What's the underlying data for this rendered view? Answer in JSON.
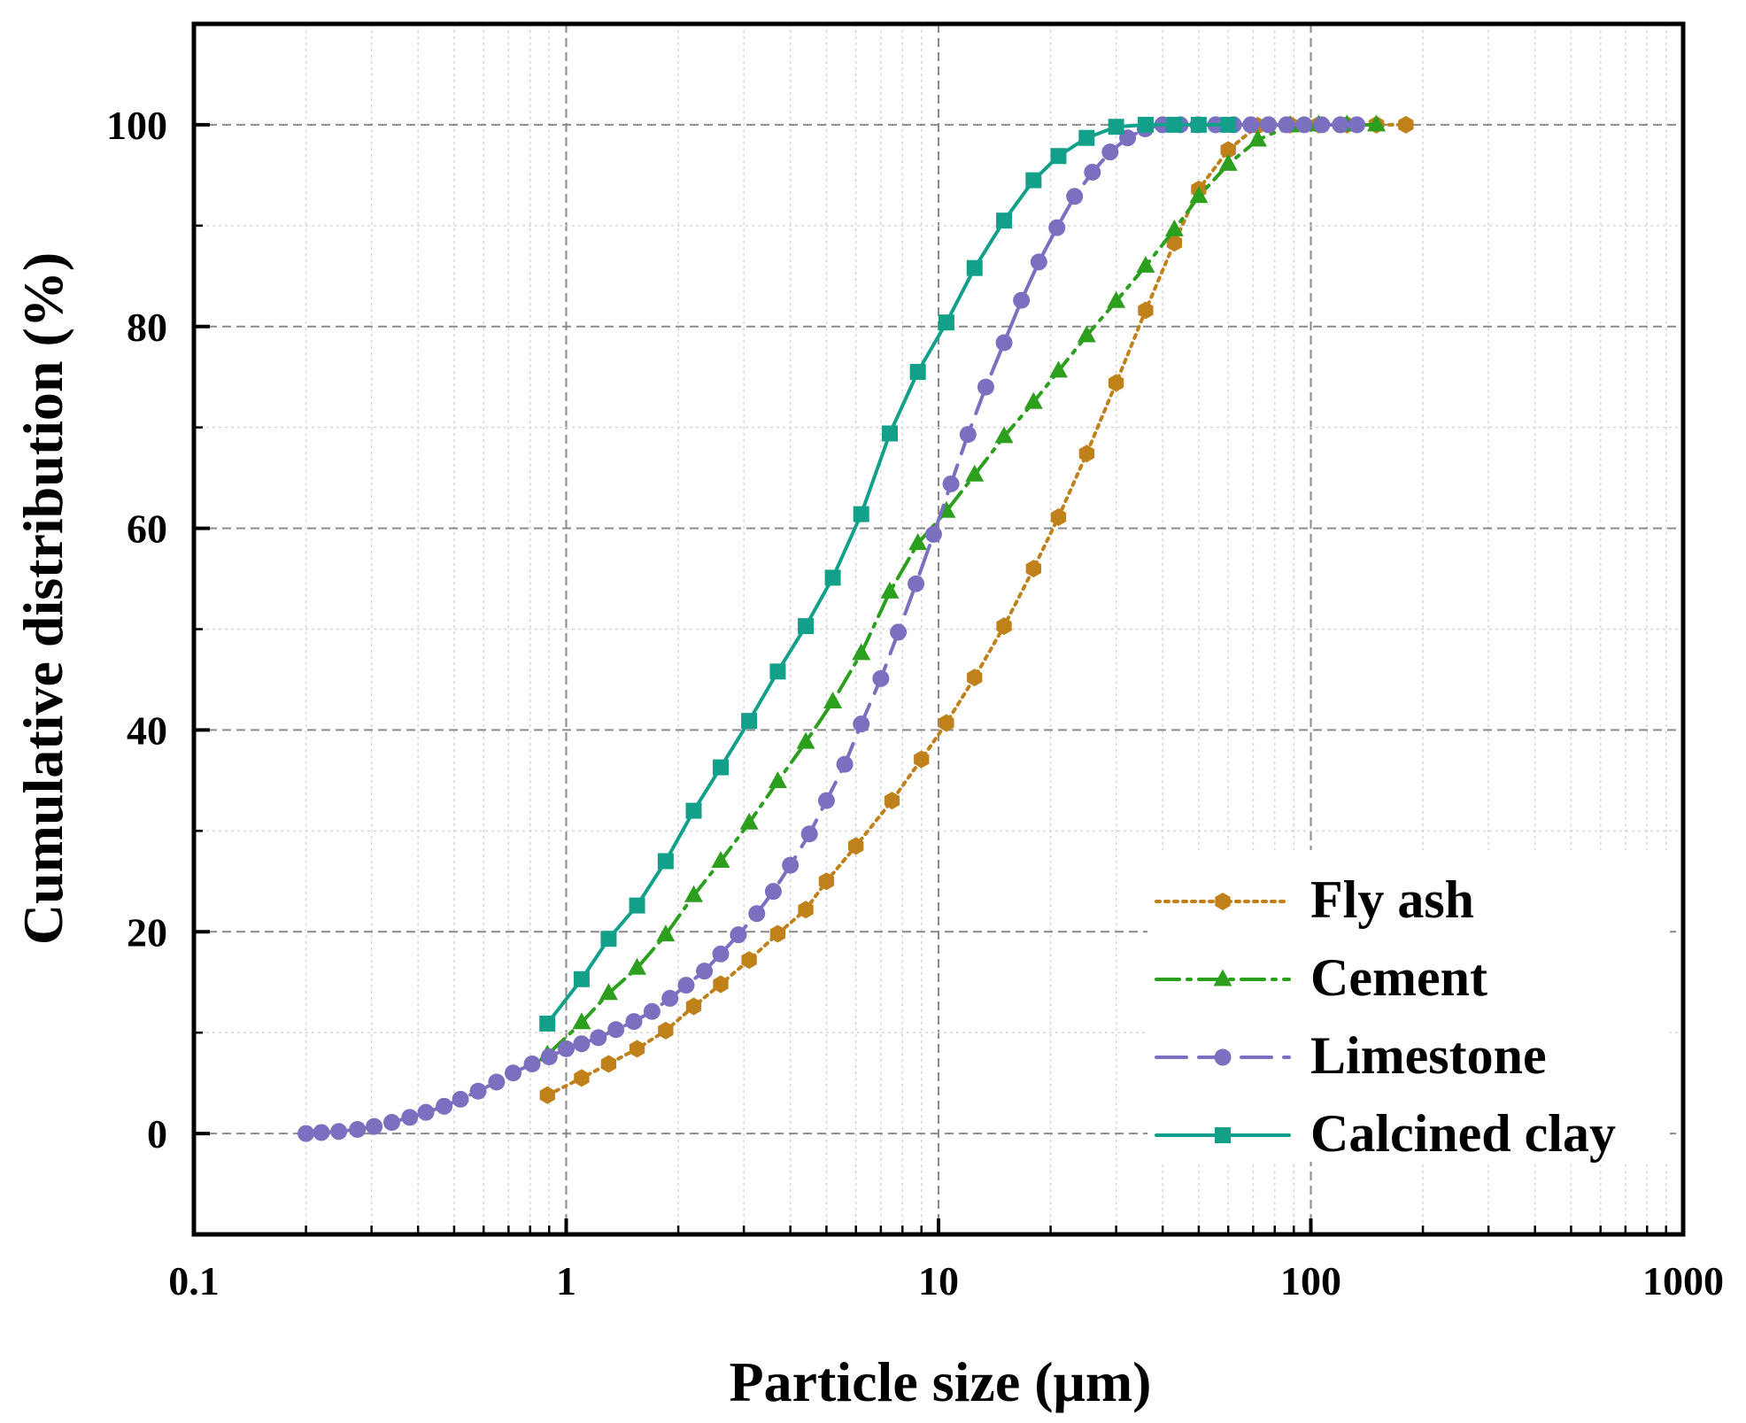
{
  "chart_data": {
    "type": "line",
    "title": "",
    "xlabel": "Particle size (μm)",
    "ylabel": "Cumulative distribution (%)",
    "xscale": "log",
    "xlim": [
      0.1,
      1000
    ],
    "ylim": [
      -10,
      110
    ],
    "xticks": [
      0.1,
      1,
      10,
      100,
      1000
    ],
    "xtick_labels": [
      "0.1",
      "1",
      "10",
      "100",
      "1000"
    ],
    "yticks": [
      0,
      20,
      40,
      60,
      80,
      100
    ],
    "ytick_labels": [
      "0",
      "20",
      "40",
      "60",
      "80",
      "100"
    ],
    "grid": true,
    "legend_position": "bottom-right",
    "series": [
      {
        "name": "Fly ash",
        "color": "#c0801a",
        "line_style": "dotted",
        "marker": "hexagon",
        "x": [
          0.89,
          1.1,
          1.3,
          1.55,
          1.85,
          2.2,
          2.6,
          3.1,
          3.7,
          4.4,
          5.0,
          6.0,
          7.5,
          9.0,
          10.5,
          12.5,
          15.0,
          18.0,
          21.0,
          25.0,
          30.0,
          36.0,
          43.0,
          50.0,
          60.0,
          72.0,
          88.0,
          105.0,
          125.0,
          150.0,
          180.0
        ],
        "y": [
          3.8,
          5.5,
          6.9,
          8.4,
          10.2,
          12.6,
          14.8,
          17.2,
          19.8,
          22.2,
          25.0,
          28.5,
          33.0,
          37.1,
          40.7,
          45.2,
          50.3,
          56.0,
          61.1,
          67.4,
          74.4,
          81.6,
          88.3,
          93.6,
          97.5,
          99.9,
          100,
          100,
          100,
          100,
          100
        ]
      },
      {
        "name": "Cement",
        "color": "#2ca01e",
        "line_style": "dash-dot",
        "marker": "triangle",
        "x": [
          0.89,
          1.1,
          1.3,
          1.55,
          1.85,
          2.2,
          2.6,
          3.1,
          3.7,
          4.4,
          5.2,
          6.2,
          7.4,
          8.8,
          10.5,
          12.5,
          15.0,
          18.0,
          21.0,
          25.0,
          30.0,
          36.0,
          43.0,
          50.0,
          60.0,
          72.0,
          88.0,
          105.0,
          125.0,
          150.0
        ],
        "y": [
          7.8,
          11.0,
          13.9,
          16.4,
          19.7,
          23.6,
          27.0,
          30.8,
          34.9,
          38.8,
          42.8,
          47.6,
          53.7,
          58.5,
          61.7,
          65.3,
          69.1,
          72.5,
          75.6,
          79.1,
          82.5,
          86.0,
          89.6,
          92.9,
          96.1,
          98.5,
          99.9,
          100,
          100,
          100
        ]
      },
      {
        "name": "Limestone",
        "color": "#7b6fc0",
        "line_style": "dashed",
        "marker": "circle",
        "x": [
          0.2,
          0.22,
          0.245,
          0.275,
          0.305,
          0.34,
          0.38,
          0.42,
          0.47,
          0.52,
          0.58,
          0.65,
          0.72,
          0.81,
          0.9,
          1.0,
          1.1,
          1.22,
          1.36,
          1.52,
          1.7,
          1.9,
          2.1,
          2.35,
          2.6,
          2.9,
          3.25,
          3.6,
          4.0,
          4.5,
          5.0,
          5.6,
          6.2,
          7.0,
          7.8,
          8.7,
          9.7,
          10.8,
          12.0,
          13.4,
          15.0,
          16.7,
          18.6,
          20.8,
          23.2,
          25.9,
          28.9,
          32.2,
          35.9,
          40.0,
          44.6,
          49.8,
          55.5,
          62.0,
          69.0,
          77.0,
          86.0,
          96.0,
          107.0,
          120.0,
          133.0
        ],
        "y": [
          0,
          0.1,
          0.2,
          0.4,
          0.7,
          1.1,
          1.6,
          2.1,
          2.7,
          3.4,
          4.2,
          5.1,
          6.0,
          6.9,
          7.6,
          8.4,
          8.9,
          9.5,
          10.3,
          11.1,
          12.1,
          13.4,
          14.7,
          16.1,
          17.8,
          19.7,
          21.8,
          24.0,
          26.6,
          29.7,
          33.0,
          36.6,
          40.6,
          45.1,
          49.7,
          54.5,
          59.4,
          64.4,
          69.3,
          74.0,
          78.4,
          82.6,
          86.4,
          89.8,
          92.9,
          95.3,
          97.3,
          98.7,
          99.6,
          100,
          100,
          100,
          100,
          100,
          100,
          100,
          100,
          100,
          100,
          100,
          100
        ]
      },
      {
        "name": "Calcined clay",
        "color": "#13a08a",
        "line_style": "solid",
        "marker": "square",
        "x": [
          0.89,
          1.1,
          1.3,
          1.55,
          1.85,
          2.2,
          2.6,
          3.1,
          3.7,
          4.4,
          5.2,
          6.2,
          7.4,
          8.8,
          10.5,
          12.5,
          15.0,
          18.0,
          21.0,
          25.0,
          30.0,
          36.0,
          43.0,
          50.0,
          60.0
        ],
        "y": [
          10.9,
          15.3,
          19.3,
          22.6,
          27.0,
          32.0,
          36.3,
          40.9,
          45.8,
          50.3,
          55.1,
          61.4,
          69.4,
          75.5,
          80.4,
          85.8,
          90.5,
          94.5,
          96.9,
          98.7,
          99.8,
          100,
          100,
          100,
          100
        ]
      }
    ]
  }
}
